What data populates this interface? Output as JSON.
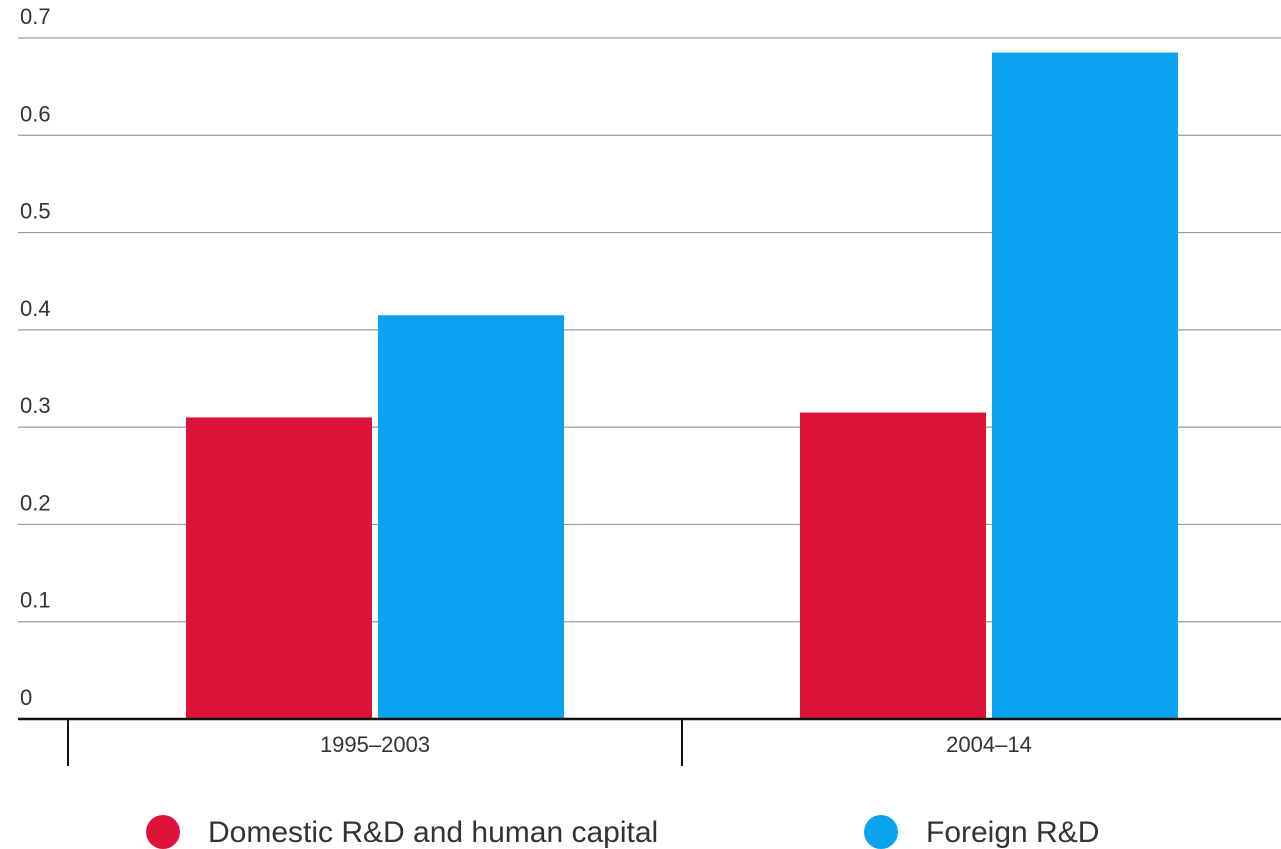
{
  "chart_data": {
    "type": "bar",
    "categories": [
      "1995–2003",
      "2004–14"
    ],
    "series": [
      {
        "name": "Domestic R&D and human capital",
        "color": "#DC143C",
        "values": [
          0.31,
          0.315
        ]
      },
      {
        "name": "Foreign R&D",
        "color": "#0BA3F0",
        "values": [
          0.415,
          0.685
        ]
      }
    ],
    "ylim": [
      0,
      0.7
    ],
    "yticks": [
      0,
      0.1,
      0.2,
      0.3,
      0.4,
      0.5,
      0.6,
      0.7
    ],
    "ytick_labels": [
      "0",
      "0.1",
      "0.2",
      "0.3",
      "0.4",
      "0.5",
      "0.6",
      "0.7"
    ],
    "title": "",
    "xlabel": "",
    "ylabel": "",
    "grid": true,
    "legend_position": "bottom-center"
  }
}
